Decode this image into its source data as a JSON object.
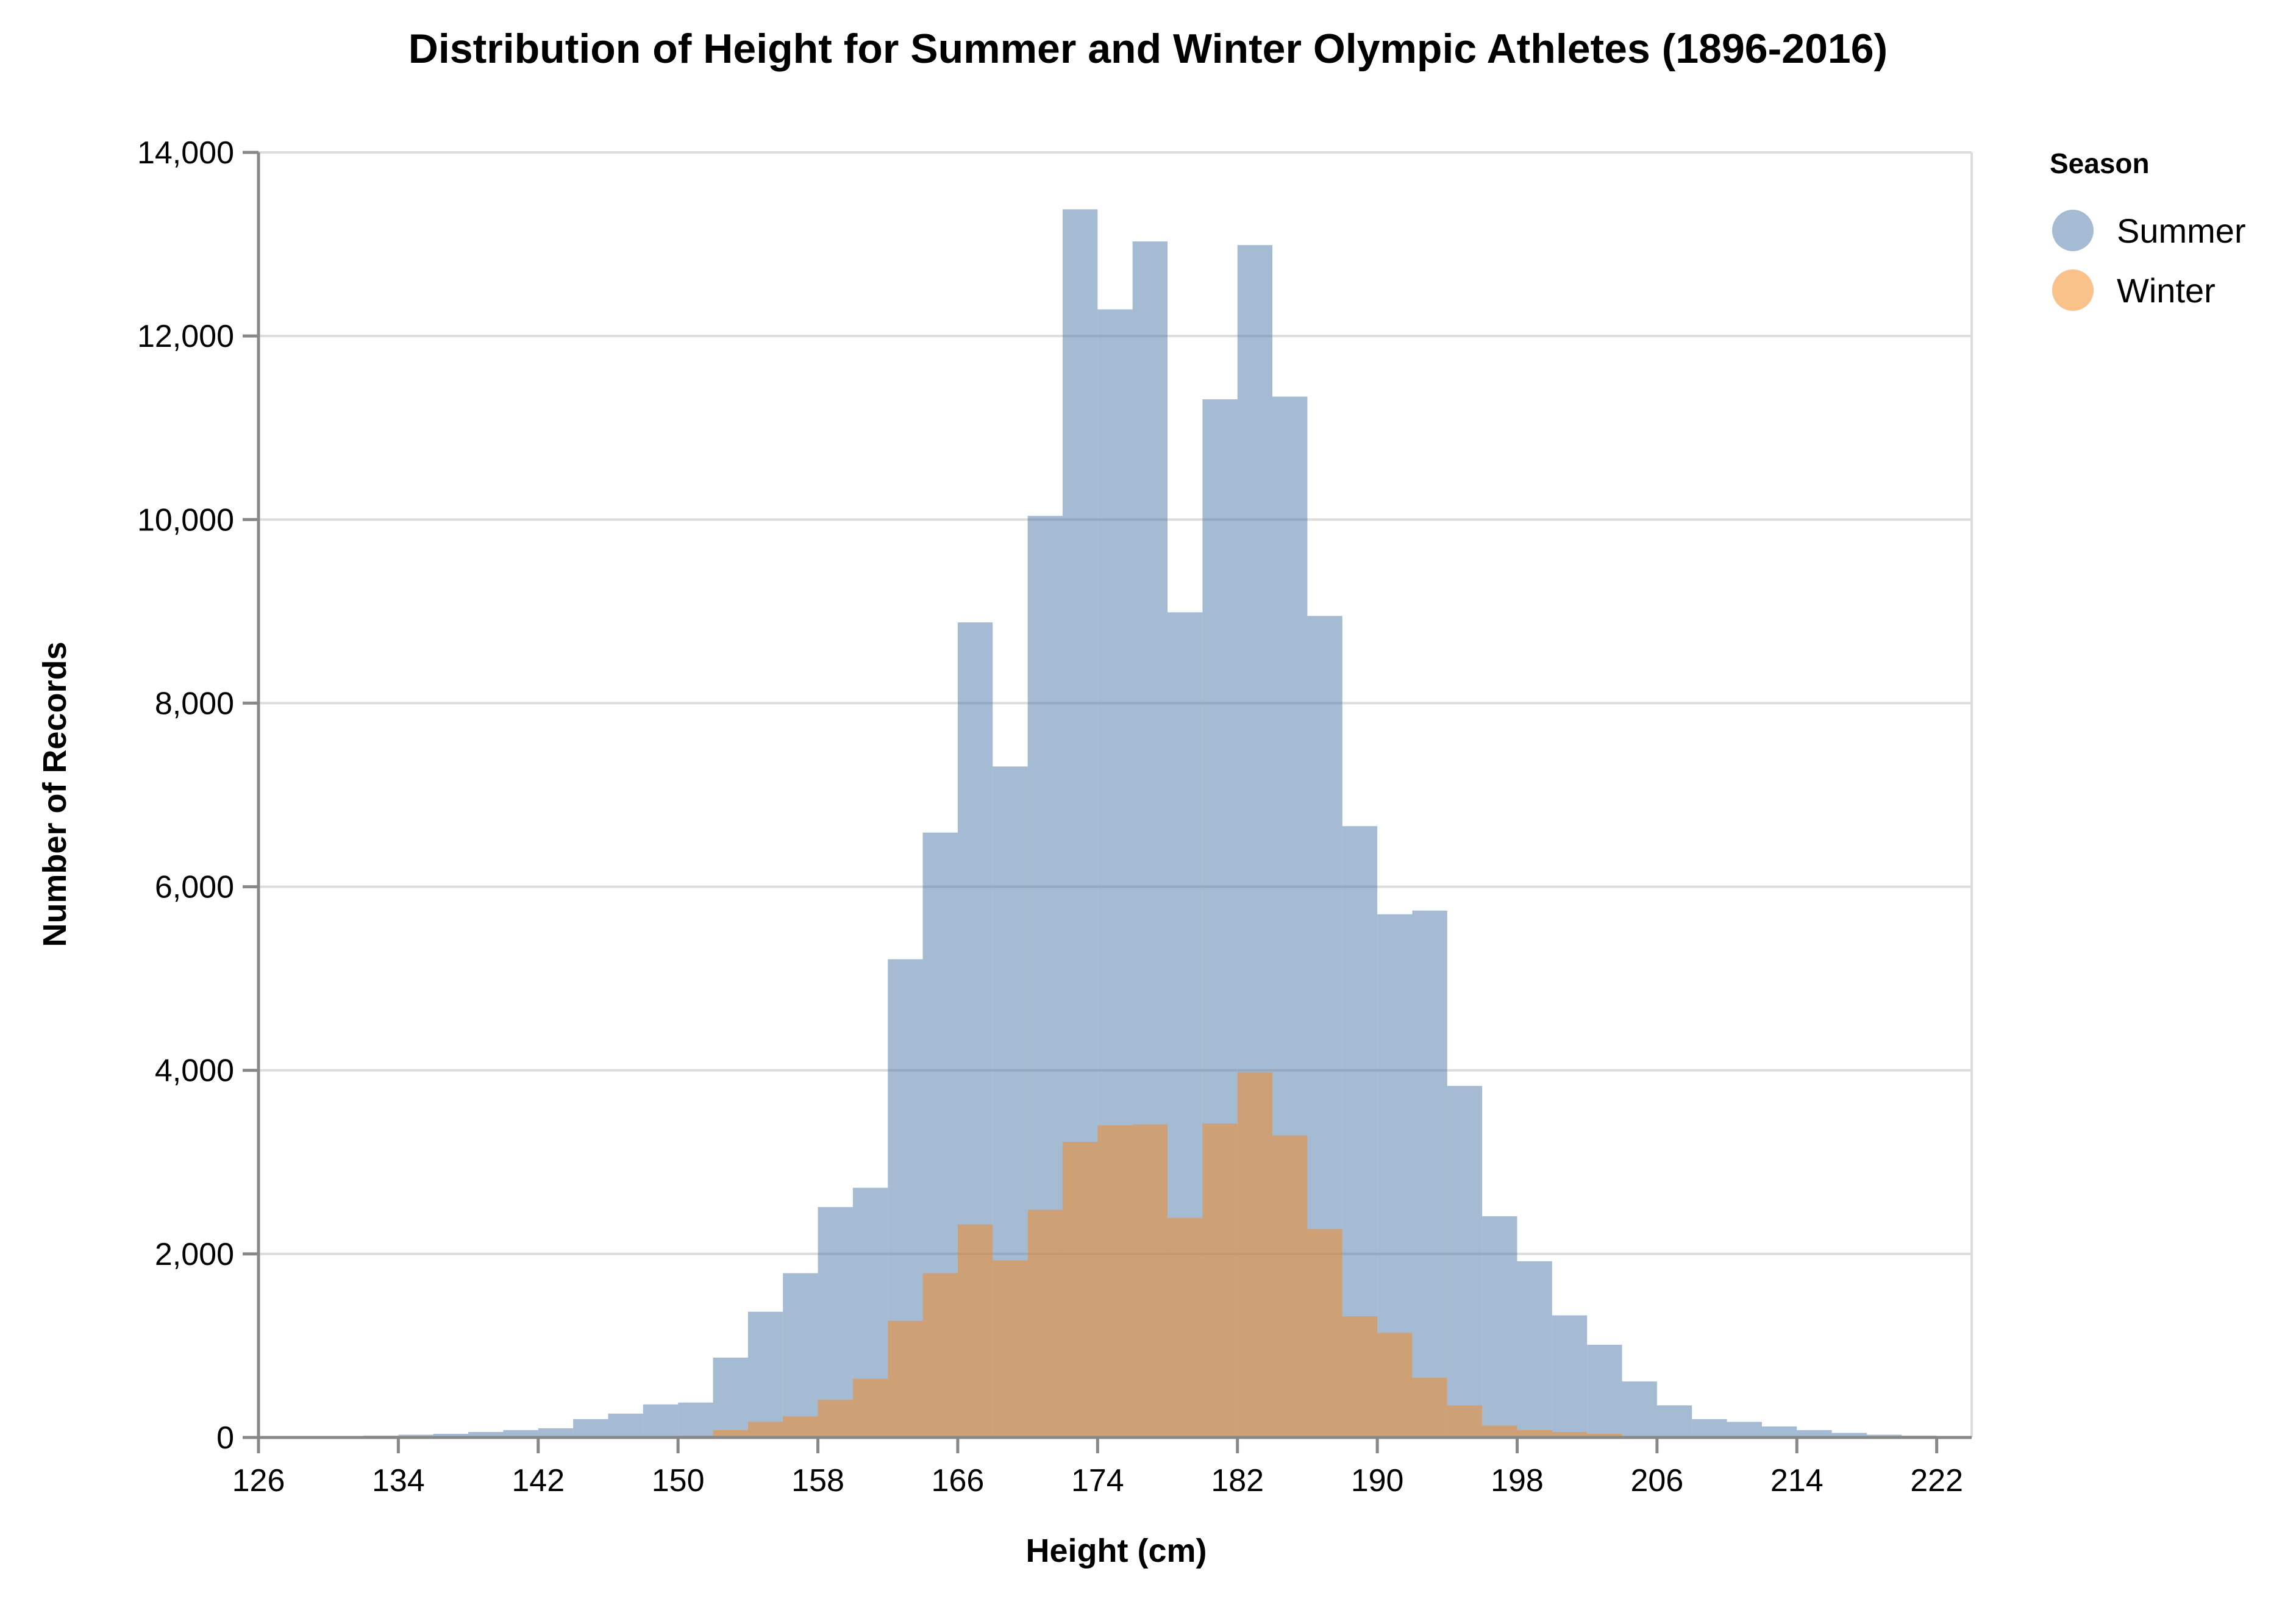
{
  "chart_data": {
    "type": "bar",
    "title": "Distribution of Height for Summer and Winter Olympic Athletes (1896-2016)",
    "xlabel": "Height (cm)",
    "ylabel": "Number of Records",
    "xlim": [
      126,
      224
    ],
    "ylim": [
      0,
      14000
    ],
    "x_ticks": [
      126,
      134,
      142,
      150,
      158,
      166,
      174,
      182,
      190,
      198,
      206,
      214,
      222
    ],
    "y_ticks": [
      0,
      2000,
      4000,
      6000,
      8000,
      10000,
      12000,
      14000
    ],
    "y_tick_labels": [
      "0",
      "2,000",
      "4,000",
      "6,000",
      "8,000",
      "10,000",
      "12,000",
      "14,000"
    ],
    "x_tick_labels": [
      "126",
      "134",
      "142",
      "150",
      "158",
      "166",
      "174",
      "182",
      "190",
      "198",
      "206",
      "214",
      "222"
    ],
    "bin_width": 2,
    "bin_starts": [
      126,
      128,
      130,
      132,
      134,
      136,
      138,
      140,
      142,
      144,
      146,
      148,
      150,
      152,
      154,
      156,
      158,
      160,
      162,
      164,
      166,
      168,
      170,
      172,
      174,
      176,
      178,
      180,
      182,
      184,
      186,
      188,
      190,
      192,
      194,
      196,
      198,
      200,
      202,
      204,
      206,
      208,
      210,
      212,
      214,
      216,
      218,
      220,
      222
    ],
    "grid": true,
    "legend": {
      "title": "Season",
      "position": "top-right"
    },
    "series": [
      {
        "name": "Summer",
        "color": "#4c78a8",
        "opacity": 0.5,
        "values": [
          10,
          5,
          10,
          20,
          30,
          40,
          60,
          80,
          100,
          200,
          260,
          360,
          380,
          870,
          1370,
          1790,
          2510,
          2720,
          5210,
          6590,
          8880,
          7310,
          10040,
          13380,
          12290,
          13030,
          8990,
          11310,
          12990,
          11340,
          8950,
          6660,
          5700,
          5740,
          3830,
          2410,
          1920,
          1330,
          1010,
          610,
          350,
          200,
          170,
          120,
          80,
          50,
          30,
          20,
          10
        ]
      },
      {
        "name": "Winter",
        "color": "#f58518",
        "opacity": 0.5,
        "values": [
          0,
          0,
          0,
          0,
          0,
          0,
          0,
          0,
          0,
          0,
          0,
          10,
          20,
          80,
          170,
          230,
          410,
          640,
          1270,
          1790,
          2320,
          1930,
          2480,
          3220,
          3400,
          3410,
          2390,
          3420,
          3980,
          3290,
          2270,
          1320,
          1140,
          650,
          350,
          130,
          80,
          60,
          40,
          10,
          0,
          0,
          0,
          0,
          0,
          0,
          0,
          0,
          0
        ]
      }
    ]
  }
}
